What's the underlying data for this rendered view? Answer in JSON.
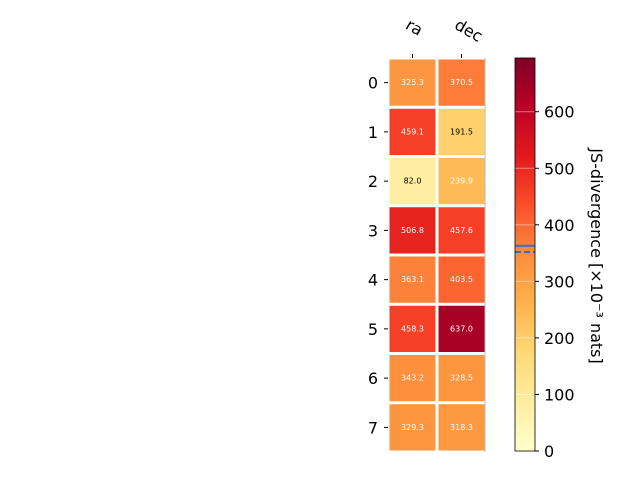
{
  "chart_data": {
    "type": "heatmap",
    "title": "",
    "columns": [
      "ra",
      "dec"
    ],
    "rows": [
      "0",
      "1",
      "2",
      "3",
      "4",
      "5",
      "6",
      "7"
    ],
    "values": [
      [
        325.3,
        370.5
      ],
      [
        459.1,
        191.5
      ],
      [
        82.0,
        239.9
      ],
      [
        506.8,
        457.6
      ],
      [
        363.1,
        403.5
      ],
      [
        458.3,
        637.0
      ],
      [
        343.2,
        328.5
      ],
      [
        329.3,
        318.3
      ]
    ],
    "value_labels": [
      [
        "325.3",
        "370.5"
      ],
      [
        "459.1",
        "191.5"
      ],
      [
        "82.0",
        "239.9"
      ],
      [
        "506.8",
        "457.6"
      ],
      [
        "363.1",
        "403.5"
      ],
      [
        "458.3",
        "637.0"
      ],
      [
        "343.2",
        "328.5"
      ],
      [
        "329.3",
        "318.3"
      ]
    ],
    "colormap": "YlOrRd",
    "colorbar": {
      "label": "JS-divergence [×10⁻³ nats]",
      "range": [
        0,
        695
      ],
      "ticks": [
        0,
        100,
        200,
        300,
        400,
        500,
        600
      ],
      "tick_labels": [
        "0",
        "100",
        "200",
        "300",
        "400",
        "500",
        "600"
      ],
      "reference_lines": [
        {
          "value": 363,
          "style": "solid",
          "color": "#3a6fc4"
        },
        {
          "value": 352,
          "style": "dashed",
          "color": "#3a6fc4"
        }
      ]
    },
    "grid": false,
    "legend": "none"
  }
}
